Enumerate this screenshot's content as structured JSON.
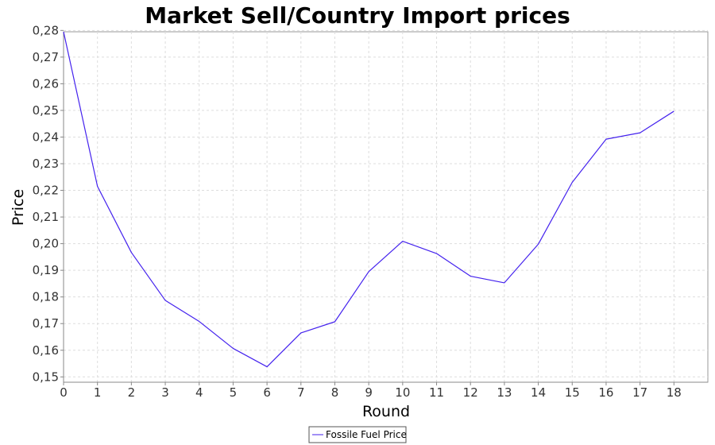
{
  "chart_data": {
    "type": "line",
    "title": "Market Sell/Country Import prices",
    "xlabel": "Round",
    "ylabel": "Price",
    "x": [
      0,
      1,
      2,
      3,
      4,
      5,
      6,
      7,
      8,
      9,
      10,
      11,
      12,
      13,
      14,
      15,
      16,
      17,
      18
    ],
    "x_tick_labels": [
      "0",
      "1",
      "2",
      "3",
      "4",
      "5",
      "6",
      "7",
      "8",
      "9",
      "10",
      "11",
      "12",
      "13",
      "14",
      "15",
      "16",
      "17",
      "18"
    ],
    "xlim": [
      0,
      19
    ],
    "ylim": [
      0.148,
      0.2795
    ],
    "y_ticks": [
      0.15,
      0.16,
      0.17,
      0.18,
      0.19,
      0.2,
      0.21,
      0.22,
      0.23,
      0.24,
      0.25,
      0.26,
      0.27,
      0.28
    ],
    "y_tick_labels": [
      "0,15",
      "0,16",
      "0,17",
      "0,18",
      "0,19",
      "0,20",
      "0,21",
      "0,22",
      "0,23",
      "0,24",
      "0,25",
      "0,26",
      "0,27",
      "0,28"
    ],
    "grid": true,
    "legend_position": "bottom-center",
    "series": [
      {
        "name": "Fossile Fuel Price",
        "color": "#4422ee",
        "values": [
          0.2795,
          0.2215,
          0.1967,
          0.1787,
          0.1708,
          0.1607,
          0.1538,
          0.1665,
          0.1707,
          0.1895,
          0.2009,
          0.1963,
          0.1878,
          0.1853,
          0.1998,
          0.223,
          0.2392,
          0.2416,
          0.2497
        ]
      }
    ]
  }
}
